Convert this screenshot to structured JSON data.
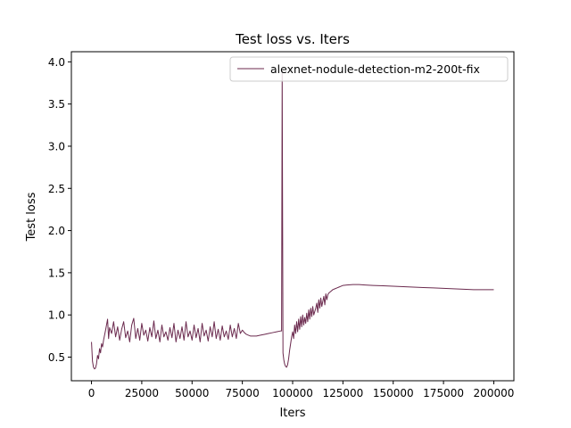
{
  "chart_data": {
    "type": "line",
    "title": "Test loss  vs. Iters",
    "xlabel": "Iters",
    "ylabel": "Test loss",
    "xlim": [
      -10000,
      210000
    ],
    "ylim": [
      0.22,
      4.12
    ],
    "xticks": [
      0,
      25000,
      50000,
      75000,
      100000,
      125000,
      150000,
      175000,
      200000
    ],
    "yticks": [
      0.5,
      1.0,
      1.5,
      2.0,
      2.5,
      3.0,
      3.5,
      4.0
    ],
    "xtick_labels": [
      "0",
      "25000",
      "50000",
      "75000",
      "100000",
      "125000",
      "150000",
      "175000",
      "200000"
    ],
    "ytick_labels": [
      "0.5",
      "1.0",
      "1.5",
      "2.0",
      "2.5",
      "3.0",
      "3.5",
      "4.0"
    ],
    "grid": false,
    "legend_position": "top-right",
    "series": [
      {
        "name": "alexnet-nodule-detection-m2-200t-fix",
        "color": "#6b2a4e",
        "points": [
          [
            0,
            0.68
          ],
          [
            500,
            0.45
          ],
          [
            1000,
            0.38
          ],
          [
            1500,
            0.36
          ],
          [
            2000,
            0.37
          ],
          [
            2500,
            0.42
          ],
          [
            3000,
            0.52
          ],
          [
            3500,
            0.48
          ],
          [
            4000,
            0.6
          ],
          [
            4500,
            0.55
          ],
          [
            5000,
            0.66
          ],
          [
            5500,
            0.62
          ],
          [
            6000,
            0.7
          ],
          [
            7000,
            0.82
          ],
          [
            8000,
            0.95
          ],
          [
            8500,
            0.72
          ],
          [
            9000,
            0.85
          ],
          [
            10000,
            0.78
          ],
          [
            11000,
            0.92
          ],
          [
            12000,
            0.74
          ],
          [
            13000,
            0.86
          ],
          [
            14000,
            0.7
          ],
          [
            15000,
            0.83
          ],
          [
            16000,
            0.92
          ],
          [
            17000,
            0.73
          ],
          [
            18000,
            0.81
          ],
          [
            19000,
            0.68
          ],
          [
            20000,
            0.88
          ],
          [
            21000,
            0.96
          ],
          [
            22000,
            0.72
          ],
          [
            23000,
            0.84
          ],
          [
            24000,
            0.7
          ],
          [
            25000,
            0.9
          ],
          [
            26000,
            0.76
          ],
          [
            27000,
            0.82
          ],
          [
            28000,
            0.69
          ],
          [
            29000,
            0.85
          ],
          [
            30000,
            0.74
          ],
          [
            31000,
            0.93
          ],
          [
            32000,
            0.72
          ],
          [
            33000,
            0.82
          ],
          [
            34000,
            0.68
          ],
          [
            35000,
            0.88
          ],
          [
            36000,
            0.74
          ],
          [
            37000,
            0.8
          ],
          [
            38000,
            0.7
          ],
          [
            39000,
            0.85
          ],
          [
            40000,
            0.73
          ],
          [
            41000,
            0.9
          ],
          [
            42000,
            0.68
          ],
          [
            43000,
            0.82
          ],
          [
            44000,
            0.72
          ],
          [
            45000,
            0.86
          ],
          [
            46000,
            0.7
          ],
          [
            47000,
            0.92
          ],
          [
            48000,
            0.74
          ],
          [
            49000,
            0.81
          ],
          [
            50000,
            0.7
          ],
          [
            51000,
            0.88
          ],
          [
            52000,
            0.73
          ],
          [
            53000,
            0.84
          ],
          [
            54000,
            0.68
          ],
          [
            55000,
            0.9
          ],
          [
            56000,
            0.75
          ],
          [
            57000,
            0.82
          ],
          [
            58000,
            0.69
          ],
          [
            59000,
            0.86
          ],
          [
            60000,
            0.74
          ],
          [
            61000,
            0.92
          ],
          [
            62000,
            0.72
          ],
          [
            63000,
            0.83
          ],
          [
            64000,
            0.7
          ],
          [
            65000,
            0.87
          ],
          [
            66000,
            0.74
          ],
          [
            67000,
            0.81
          ],
          [
            68000,
            0.71
          ],
          [
            69000,
            0.88
          ],
          [
            70000,
            0.74
          ],
          [
            71000,
            0.84
          ],
          [
            72000,
            0.72
          ],
          [
            73000,
            0.9
          ],
          [
            74000,
            0.78
          ],
          [
            75000,
            0.82
          ],
          [
            76000,
            0.79
          ],
          [
            77000,
            0.77
          ],
          [
            78000,
            0.76
          ],
          [
            79000,
            0.75
          ],
          [
            80000,
            0.75
          ],
          [
            82000,
            0.75
          ],
          [
            84000,
            0.76
          ],
          [
            86000,
            0.77
          ],
          [
            88000,
            0.78
          ],
          [
            90000,
            0.79
          ],
          [
            92000,
            0.8
          ],
          [
            94000,
            0.81
          ],
          [
            94500,
            0.81
          ],
          [
            94800,
            3.88
          ],
          [
            95200,
            0.55
          ],
          [
            95600,
            0.47
          ],
          [
            96000,
            0.42
          ],
          [
            96500,
            0.39
          ],
          [
            97000,
            0.38
          ],
          [
            97500,
            0.41
          ],
          [
            98000,
            0.48
          ],
          [
            98500,
            0.58
          ],
          [
            99000,
            0.66
          ],
          [
            99500,
            0.74
          ],
          [
            100000,
            0.8
          ],
          [
            100500,
            0.72
          ],
          [
            101000,
            0.88
          ],
          [
            101500,
            0.78
          ],
          [
            102000,
            0.92
          ],
          [
            102500,
            0.8
          ],
          [
            103000,
            0.95
          ],
          [
            103500,
            0.83
          ],
          [
            104000,
            0.98
          ],
          [
            104500,
            0.86
          ],
          [
            105000,
            1.0
          ],
          [
            105500,
            0.88
          ],
          [
            106000,
            0.97
          ],
          [
            106500,
            0.9
          ],
          [
            107000,
            1.02
          ],
          [
            107500,
            0.92
          ],
          [
            108000,
            1.06
          ],
          [
            108500,
            0.95
          ],
          [
            109000,
            1.08
          ],
          [
            109500,
            0.98
          ],
          [
            110000,
            1.1
          ],
          [
            110500,
            1.0
          ],
          [
            111000,
            1.04
          ],
          [
            111500,
            1.08
          ],
          [
            112000,
            1.14
          ],
          [
            112500,
            1.03
          ],
          [
            113000,
            1.18
          ],
          [
            113500,
            1.08
          ],
          [
            114000,
            1.2
          ],
          [
            114500,
            1.1
          ],
          [
            115000,
            1.16
          ],
          [
            115500,
            1.22
          ],
          [
            116000,
            1.12
          ],
          [
            116500,
            1.25
          ],
          [
            117000,
            1.18
          ],
          [
            117500,
            1.24
          ],
          [
            118000,
            1.26
          ],
          [
            119000,
            1.28
          ],
          [
            120000,
            1.3
          ],
          [
            121000,
            1.31
          ],
          [
            122000,
            1.32
          ],
          [
            123000,
            1.33
          ],
          [
            124000,
            1.34
          ],
          [
            125000,
            1.35
          ],
          [
            127000,
            1.355
          ],
          [
            130000,
            1.36
          ],
          [
            133000,
            1.36
          ],
          [
            136000,
            1.355
          ],
          [
            140000,
            1.35
          ],
          [
            145000,
            1.345
          ],
          [
            150000,
            1.34
          ],
          [
            155000,
            1.335
          ],
          [
            160000,
            1.33
          ],
          [
            165000,
            1.325
          ],
          [
            170000,
            1.32
          ],
          [
            175000,
            1.315
          ],
          [
            180000,
            1.31
          ],
          [
            185000,
            1.305
          ],
          [
            190000,
            1.3
          ],
          [
            195000,
            1.3
          ],
          [
            200000,
            1.3
          ]
        ]
      }
    ]
  }
}
